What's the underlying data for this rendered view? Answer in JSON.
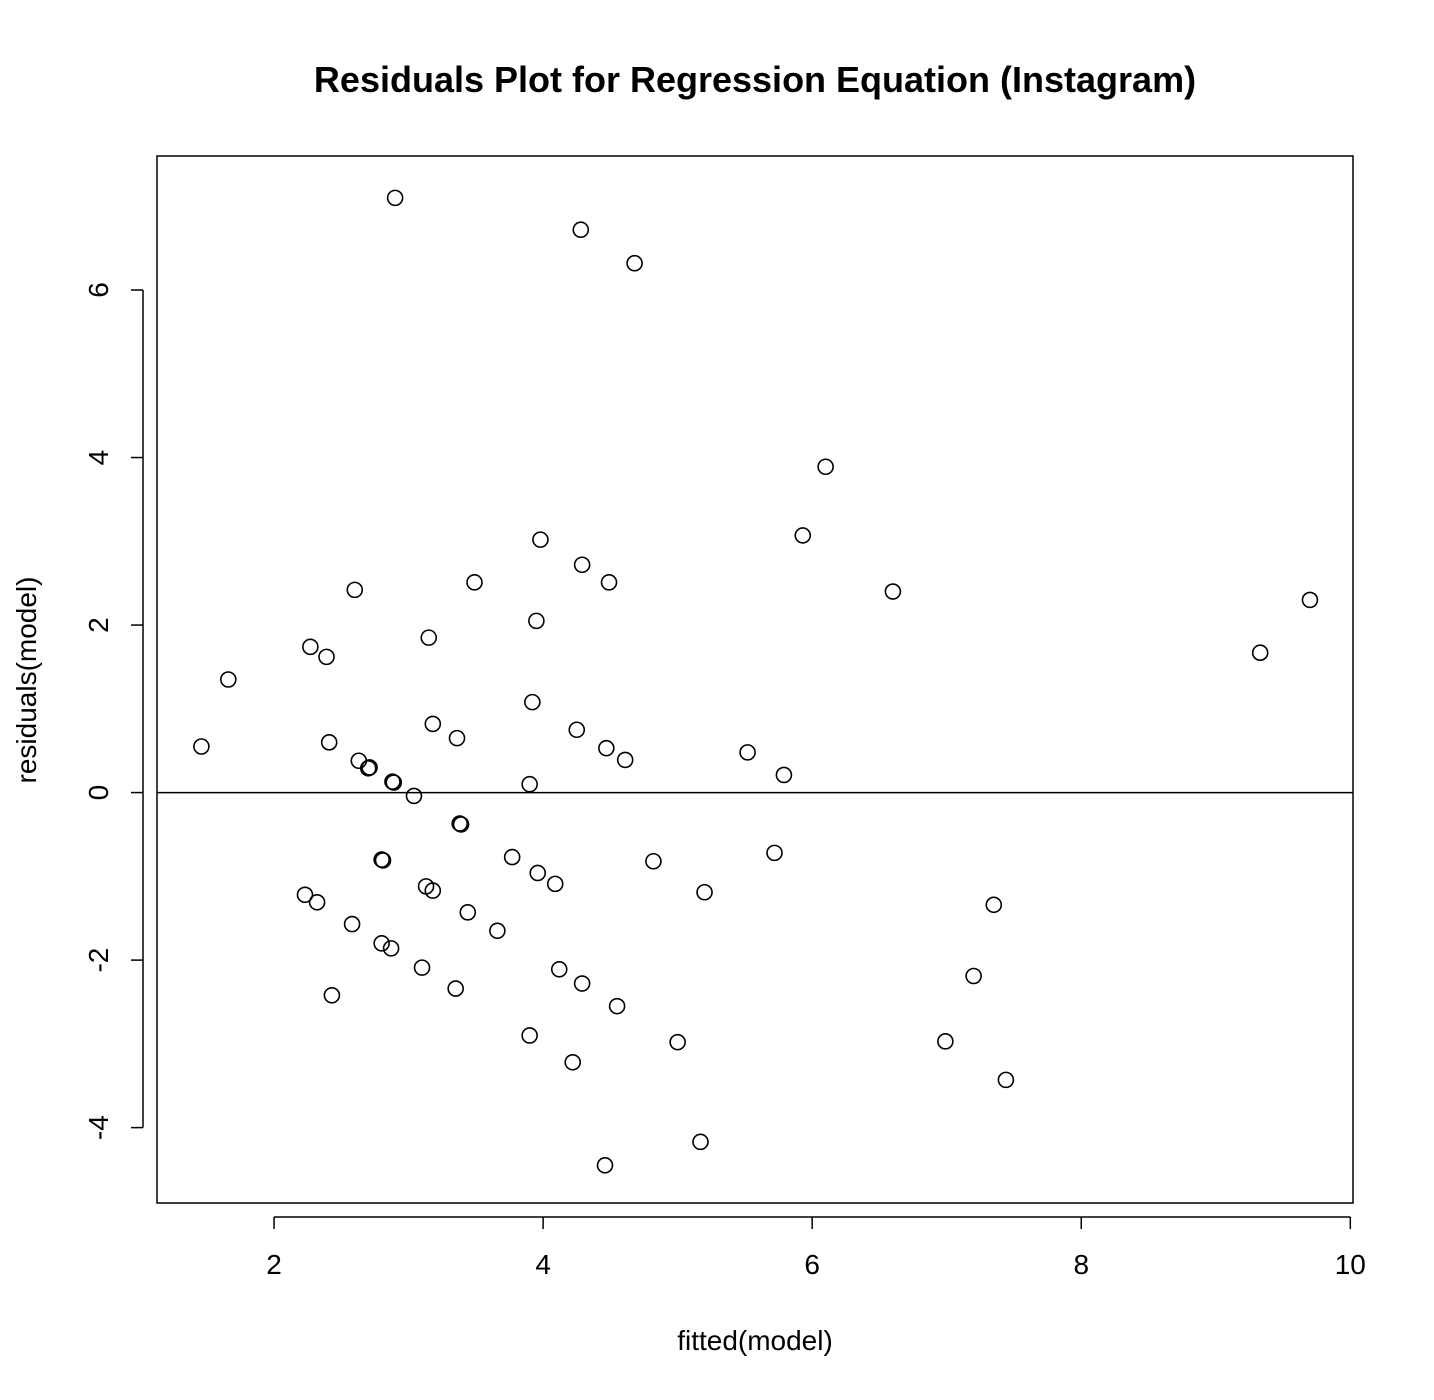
{
  "chart_data": {
    "type": "scatter",
    "title": "Residuals Plot for Regression Equation (Instagram)",
    "xlabel": "fitted(model)",
    "ylabel": "residuals(model)",
    "xlim": [
      1.13,
      10.02
    ],
    "ylim": [
      -4.9,
      7.6
    ],
    "xticks": [
      2,
      4,
      6,
      8,
      10
    ],
    "yticks": [
      -4,
      -2,
      0,
      2,
      4,
      6
    ],
    "reference_line_y": 0,
    "marker": "open-circle",
    "grid": false,
    "legend": "none",
    "points": [
      {
        "x": 2.9,
        "y": 7.1
      },
      {
        "x": 4.28,
        "y": 6.72
      },
      {
        "x": 4.68,
        "y": 6.32
      },
      {
        "x": 6.1,
        "y": 3.89
      },
      {
        "x": 5.93,
        "y": 3.07
      },
      {
        "x": 3.98,
        "y": 3.02
      },
      {
        "x": 4.29,
        "y": 2.72
      },
      {
        "x": 3.49,
        "y": 2.51
      },
      {
        "x": 4.49,
        "y": 2.51
      },
      {
        "x": 2.6,
        "y": 2.42
      },
      {
        "x": 6.6,
        "y": 2.4
      },
      {
        "x": 9.7,
        "y": 2.3
      },
      {
        "x": 3.95,
        "y": 2.05
      },
      {
        "x": 3.15,
        "y": 1.85
      },
      {
        "x": 2.27,
        "y": 1.74
      },
      {
        "x": 2.39,
        "y": 1.62
      },
      {
        "x": 9.33,
        "y": 1.67
      },
      {
        "x": 1.66,
        "y": 1.35
      },
      {
        "x": 3.92,
        "y": 1.08
      },
      {
        "x": 3.18,
        "y": 0.82
      },
      {
        "x": 4.25,
        "y": 0.75
      },
      {
        "x": 3.36,
        "y": 0.65
      },
      {
        "x": 2.41,
        "y": 0.6
      },
      {
        "x": 1.46,
        "y": 0.55
      },
      {
        "x": 4.47,
        "y": 0.53
      },
      {
        "x": 5.52,
        "y": 0.48
      },
      {
        "x": 4.61,
        "y": 0.39
      },
      {
        "x": 2.63,
        "y": 0.38
      },
      {
        "x": 2.71,
        "y": 0.3
      },
      {
        "x": 2.7,
        "y": 0.29
      },
      {
        "x": 5.79,
        "y": 0.21
      },
      {
        "x": 2.88,
        "y": 0.13
      },
      {
        "x": 2.89,
        "y": 0.12
      },
      {
        "x": 3.9,
        "y": 0.1
      },
      {
        "x": 3.04,
        "y": -0.04
      },
      {
        "x": 3.38,
        "y": -0.37
      },
      {
        "x": 3.39,
        "y": -0.38
      },
      {
        "x": 5.72,
        "y": -0.72
      },
      {
        "x": 3.77,
        "y": -0.77
      },
      {
        "x": 2.8,
        "y": -0.8
      },
      {
        "x": 2.81,
        "y": -0.81
      },
      {
        "x": 4.82,
        "y": -0.82
      },
      {
        "x": 3.96,
        "y": -0.96
      },
      {
        "x": 4.09,
        "y": -1.09
      },
      {
        "x": 3.13,
        "y": -1.12
      },
      {
        "x": 3.18,
        "y": -1.17
      },
      {
        "x": 5.2,
        "y": -1.19
      },
      {
        "x": 2.23,
        "y": -1.22
      },
      {
        "x": 2.32,
        "y": -1.31
      },
      {
        "x": 7.35,
        "y": -1.34
      },
      {
        "x": 3.44,
        "y": -1.43
      },
      {
        "x": 2.58,
        "y": -1.57
      },
      {
        "x": 3.66,
        "y": -1.65
      },
      {
        "x": 2.8,
        "y": -1.8
      },
      {
        "x": 2.87,
        "y": -1.86
      },
      {
        "x": 3.1,
        "y": -2.09
      },
      {
        "x": 4.12,
        "y": -2.11
      },
      {
        "x": 7.2,
        "y": -2.19
      },
      {
        "x": 4.29,
        "y": -2.28
      },
      {
        "x": 3.35,
        "y": -2.34
      },
      {
        "x": 2.43,
        "y": -2.42
      },
      {
        "x": 4.55,
        "y": -2.55
      },
      {
        "x": 3.9,
        "y": -2.9
      },
      {
        "x": 6.99,
        "y": -2.97
      },
      {
        "x": 5.0,
        "y": -2.98
      },
      {
        "x": 4.22,
        "y": -3.22
      },
      {
        "x": 7.44,
        "y": -3.43
      },
      {
        "x": 5.17,
        "y": -4.17
      },
      {
        "x": 4.46,
        "y": -4.45
      }
    ]
  }
}
